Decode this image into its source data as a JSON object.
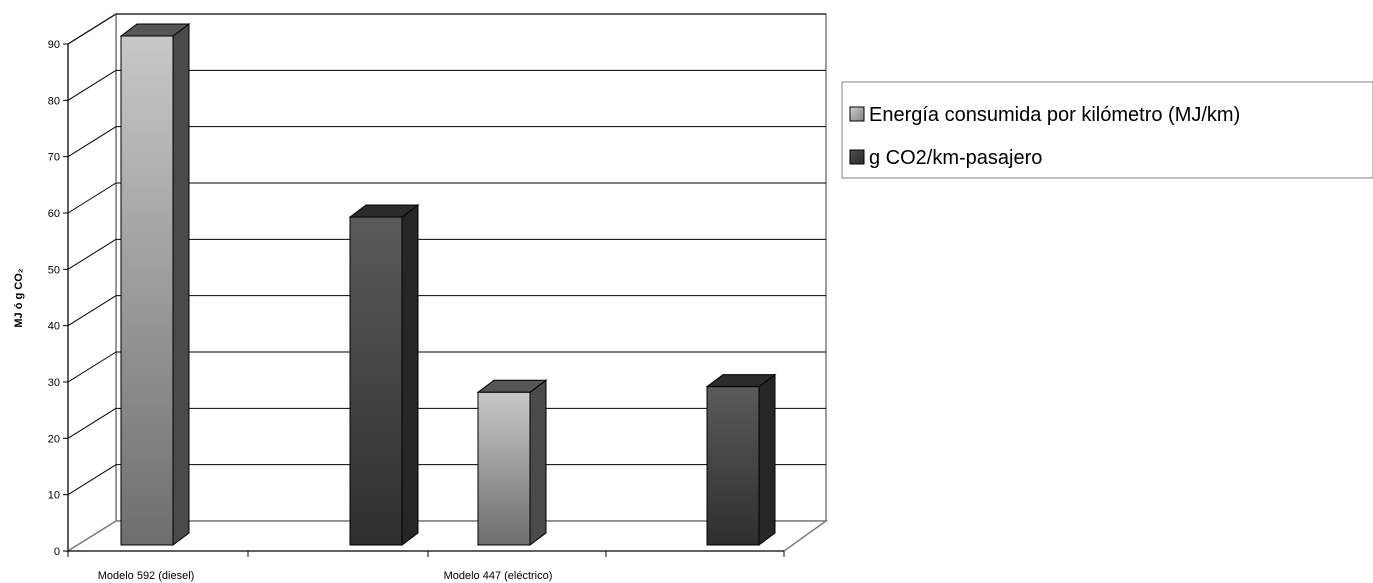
{
  "chart_data": {
    "type": "bar",
    "style": "3d-clustered-column",
    "categories": [
      "Modelo 592 (diesel)",
      "Modelo 447 (eléctrico)"
    ],
    "series": [
      {
        "name": "Energía consumida por kilómetro (MJ/km)",
        "values": [
          90,
          27
        ],
        "color": "#a8a8a8"
      },
      {
        "name": "g CO2/km-pasajero",
        "values": [
          58,
          28
        ],
        "color": "#3c3c3c"
      }
    ],
    "ylabel": "MJ ó g CO₂",
    "xlabel": "",
    "ylim": [
      0,
      90
    ],
    "yticks": [
      0,
      10,
      20,
      30,
      40,
      50,
      60,
      70,
      80,
      90
    ],
    "grid": true,
    "legend_position": "right"
  }
}
